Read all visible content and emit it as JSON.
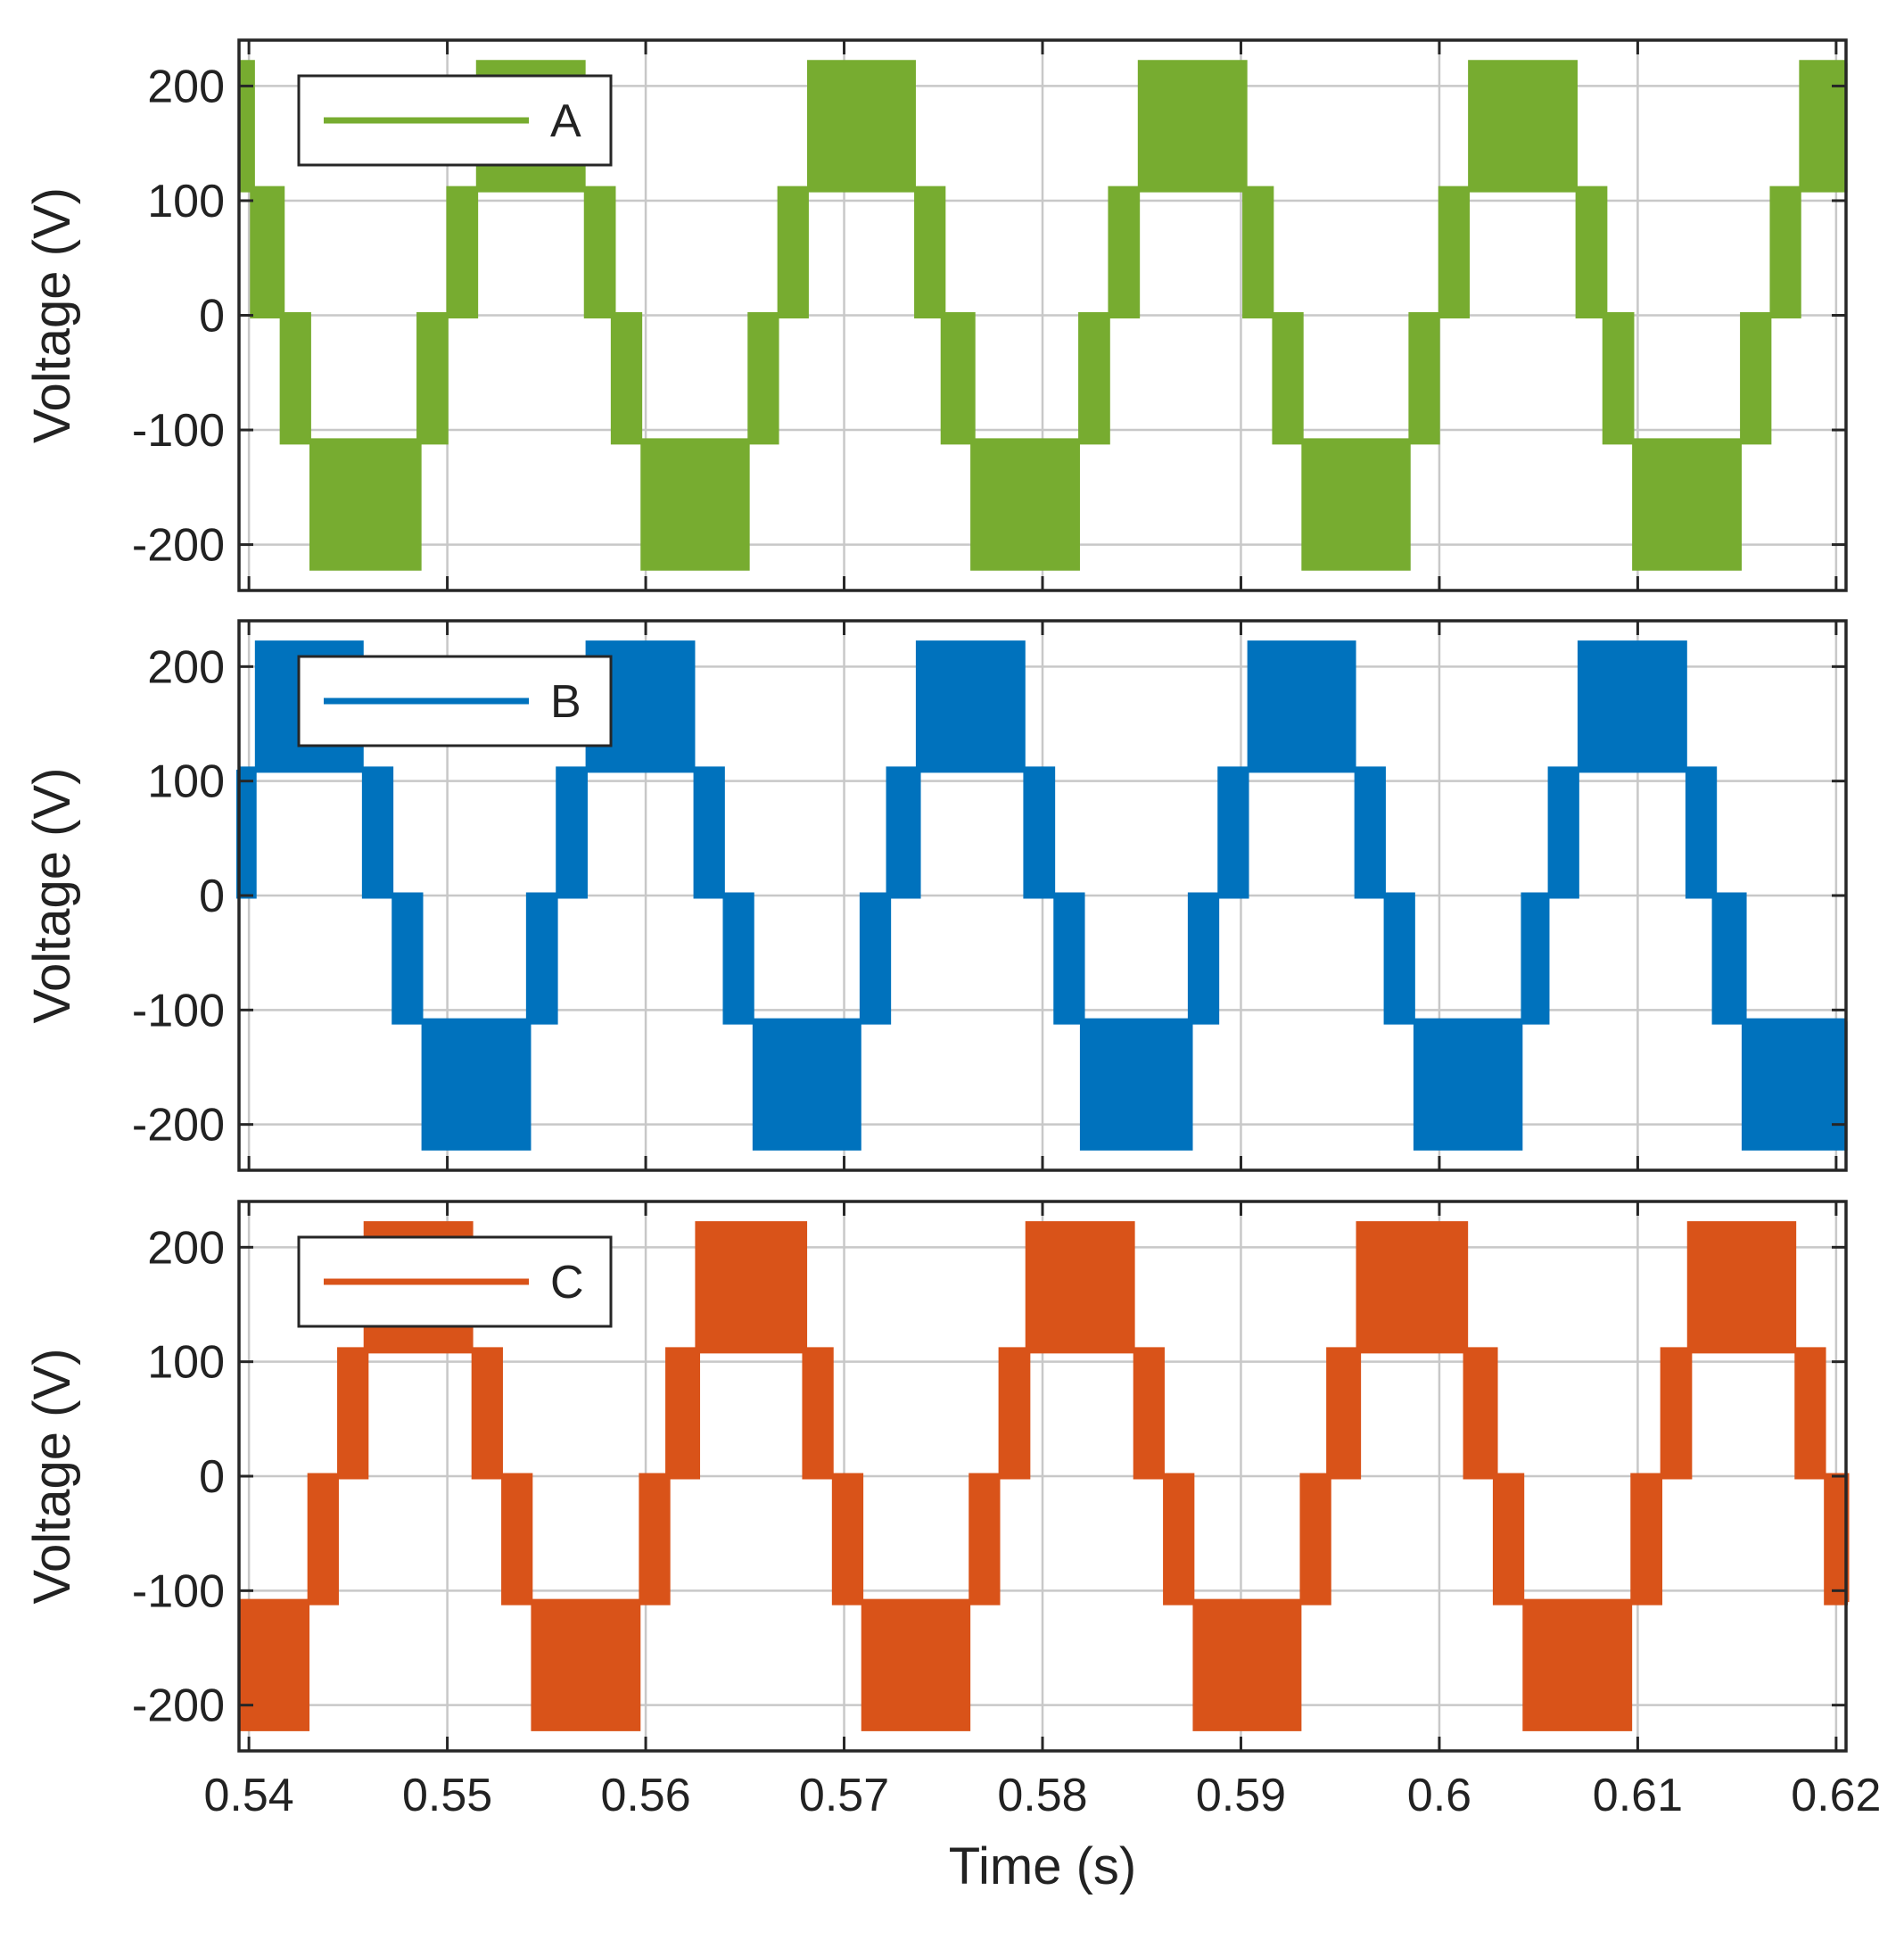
{
  "chart_data": {
    "type": "line",
    "figure_title": "",
    "xlabel": "Time (s)",
    "xlim": [
      0.5395,
      0.6205
    ],
    "x_ticks": [
      0.54,
      0.55,
      0.56,
      0.57,
      0.58,
      0.59,
      0.6,
      0.61,
      0.62
    ],
    "x_tick_labels": [
      "0.54",
      "0.55",
      "0.56",
      "0.57",
      "0.58",
      "0.59",
      "0.6",
      "0.61",
      "0.62"
    ],
    "waveform_shape": "five-level staircase phase voltage with PWM switching between adjacent levels",
    "fundamental_frequency_hz": 60,
    "levels_V": [
      -220,
      -110,
      0,
      110,
      220
    ],
    "panels": [
      {
        "series_name": "A",
        "ylabel": "Voltage (V)",
        "ylim": [
          -240,
          240
        ],
        "y_ticks": [
          200,
          100,
          0,
          -100,
          -200
        ],
        "y_tick_labels": [
          "200",
          "100",
          "0",
          "-100",
          "-200"
        ],
        "color": "#77AC30",
        "phase_shift_deg": 0
      },
      {
        "series_name": "B",
        "ylabel": "Voltage (V)",
        "ylim": [
          -240,
          240
        ],
        "y_ticks": [
          200,
          100,
          0,
          -100,
          -200
        ],
        "y_tick_labels": [
          "200",
          "100",
          "0",
          "-100",
          "-200"
        ],
        "color": "#0072BD",
        "phase_shift_deg": -120
      },
      {
        "series_name": "C",
        "ylabel": "Voltage (V)",
        "ylim": [
          -240,
          240
        ],
        "y_ticks": [
          200,
          100,
          0,
          -100,
          -200
        ],
        "y_tick_labels": [
          "200",
          "100",
          "0",
          "-100",
          "-200"
        ],
        "color": "#D95319",
        "phase_shift_deg": 120
      }
    ],
    "legend_position": "top-left",
    "grid": true
  }
}
